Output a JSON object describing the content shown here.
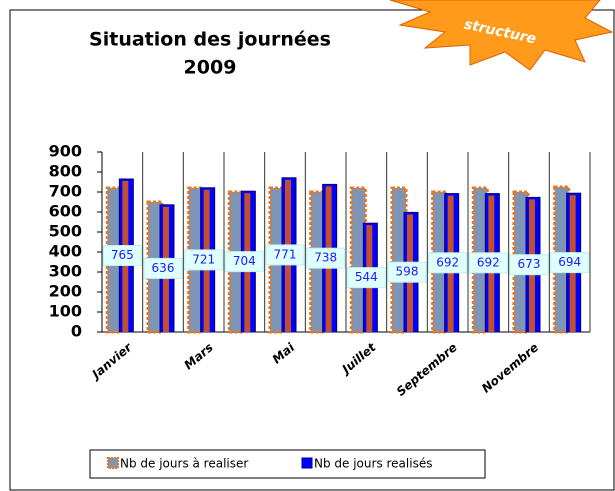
{
  "badge": "structure",
  "chart_data": {
    "type": "bar",
    "title": [
      "Situation des journées",
      "2009"
    ],
    "categories": [
      "Janvier",
      null,
      "Mars",
      null,
      "Mai",
      null,
      "Juillet",
      null,
      "Septembre",
      null,
      "Novembre",
      null
    ],
    "series": [
      {
        "name": "Nb de jours à realiser",
        "color": "#e87722",
        "values": [
          720,
          650,
          720,
          700,
          720,
          700,
          720,
          720,
          700,
          720,
          700,
          725
        ]
      },
      {
        "name": "Nb de jours realisés",
        "color": "#0000ff",
        "values": [
          765,
          636,
          721,
          704,
          771,
          738,
          544,
          598,
          692,
          692,
          673,
          694
        ],
        "data_labels": true
      }
    ],
    "ylim": [
      0,
      900
    ],
    "yticks": [
      0,
      100,
      200,
      300,
      400,
      500,
      600,
      700,
      800,
      900
    ],
    "grid": true,
    "legend": "bottom"
  }
}
